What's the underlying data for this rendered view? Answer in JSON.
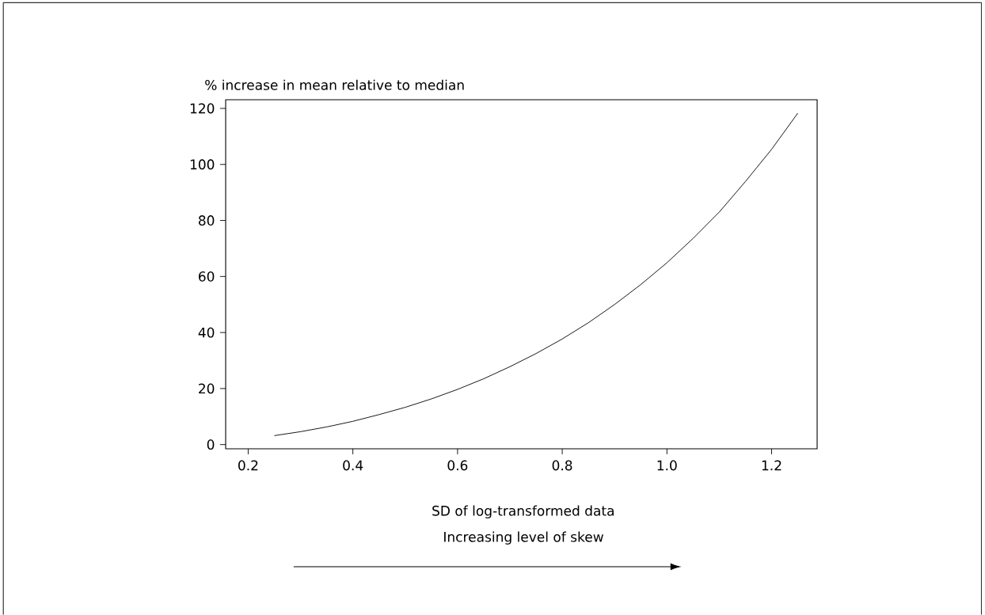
{
  "chart_data": {
    "type": "line",
    "ylabel": "% increase in mean relative to median",
    "xlabel": "SD of log-transformed data",
    "annotations": [
      "Increasing level of skew"
    ],
    "x": [
      0.25,
      0.3,
      0.35,
      0.4,
      0.45,
      0.5,
      0.55,
      0.6,
      0.65,
      0.7,
      0.75,
      0.8,
      0.85,
      0.9,
      0.95,
      1.0,
      1.05,
      1.1,
      1.15,
      1.2,
      1.25
    ],
    "series": [
      {
        "color": "#000000",
        "values": [
          3.2,
          4.6,
          6.3,
          8.3,
          10.7,
          13.3,
          16.3,
          19.7,
          23.5,
          27.8,
          32.5,
          37.7,
          43.5,
          50.0,
          57.1,
          64.9,
          73.6,
          83.0,
          93.9,
          105.4,
          118.3
        ]
      }
    ],
    "xlim": [
      0.157,
      1.287
    ],
    "ylim": [
      -1.5,
      123.1
    ],
    "xticks": [
      0.2,
      0.4,
      0.6,
      0.8,
      {
        "value": 1.0,
        "label": "1.0"
      },
      1.2
    ],
    "yticks": [
      0,
      20,
      40,
      60,
      80,
      100,
      120
    ],
    "grid": false,
    "legend": false
  }
}
